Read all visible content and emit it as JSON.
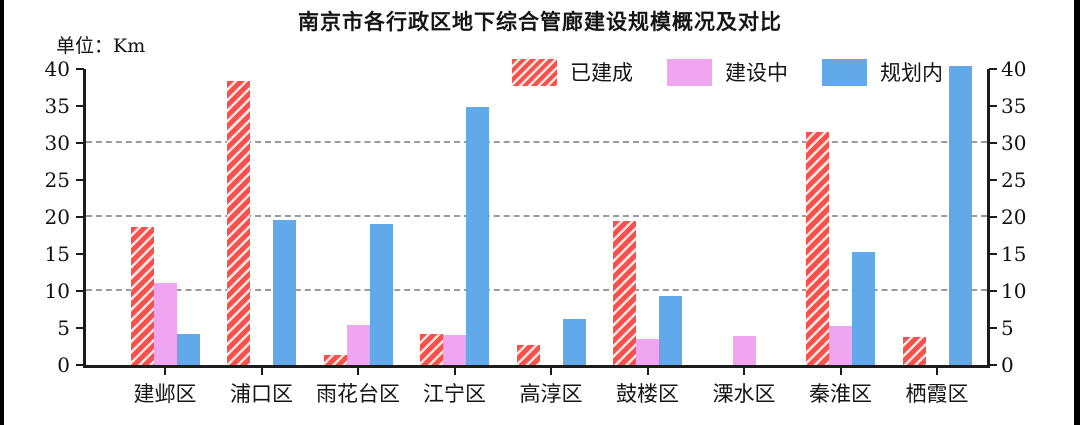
{
  "chart_data": {
    "type": "bar",
    "title": "南京市各行政区地下综合管廊建设规模概况及对比",
    "unit_label": "单位：Km",
    "categories": [
      "建邺区",
      "浦口区",
      "雨花台区",
      "江宁区",
      "高淳区",
      "鼓楼区",
      "溧水区",
      "秦淮区",
      "栖霞区"
    ],
    "series": [
      {
        "name": "已建成",
        "color": "#f8514c",
        "hatch": true,
        "values": [
          18.4,
          38.0,
          1.4,
          4.2,
          2.7,
          19.2,
          0,
          31.2,
          3.8
        ]
      },
      {
        "name": "建设中",
        "color": "#efa5f0",
        "hatch": false,
        "values": [
          11.0,
          0,
          5.3,
          4.0,
          0,
          3.5,
          3.9,
          5.2,
          0
        ]
      },
      {
        "name": "规划内",
        "color": "#62a9ea",
        "hatch": false,
        "values": [
          4.2,
          19.4,
          18.9,
          34.5,
          6.1,
          9.2,
          0,
          15.1,
          40.0
        ]
      }
    ],
    "ylabel": "",
    "xlabel": "",
    "ylim": [
      0,
      40
    ],
    "yticks": [
      0,
      5,
      10,
      15,
      20,
      25,
      30,
      35,
      40
    ],
    "gridlines": [
      10,
      20,
      30
    ],
    "grid_style": "horizontal dashed",
    "legend_position": "top-center-inside",
    "axes": "left and right mirrored y-axes"
  }
}
